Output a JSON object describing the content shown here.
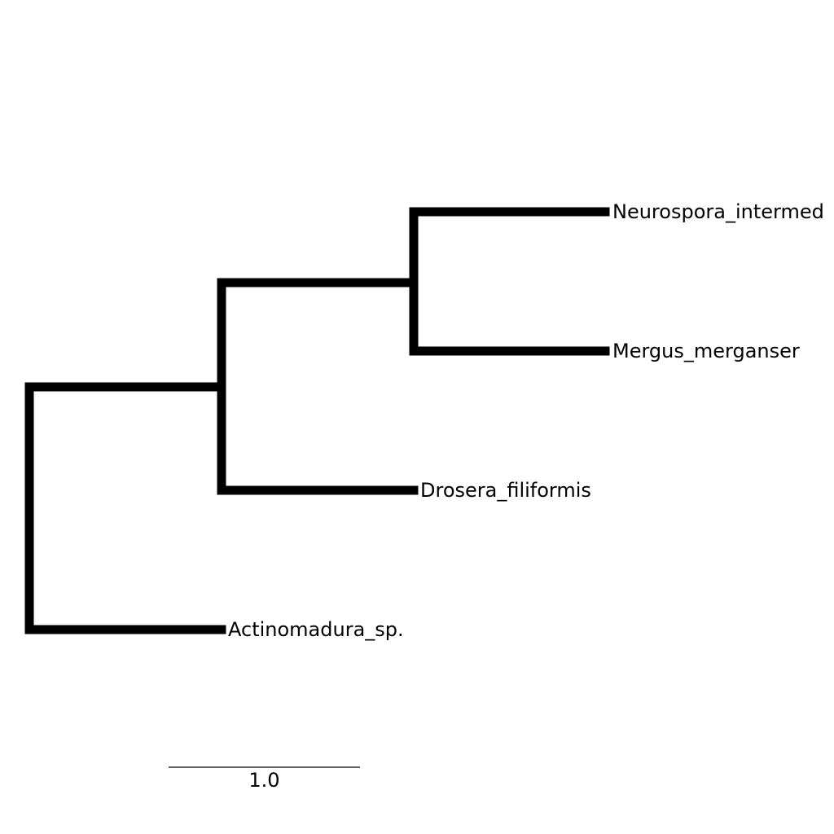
{
  "tree": {
    "taxa": [
      {
        "label": "Neurospora_intermed"
      },
      {
        "label": "Mergus_merganser"
      },
      {
        "label": "Drosera_filiformis"
      },
      {
        "label": "Actinomadura_sp."
      }
    ],
    "newick": "((( Neurospora_intermed:1.0, Mergus_merganser:1.0 ):1.0, Drosera_filiformis:1.0 ):1.0, Actinomadura_sp.:1.0 );",
    "branch_color": "#000000",
    "scale_bar": {
      "value": 1.0,
      "label": "1.0"
    }
  }
}
